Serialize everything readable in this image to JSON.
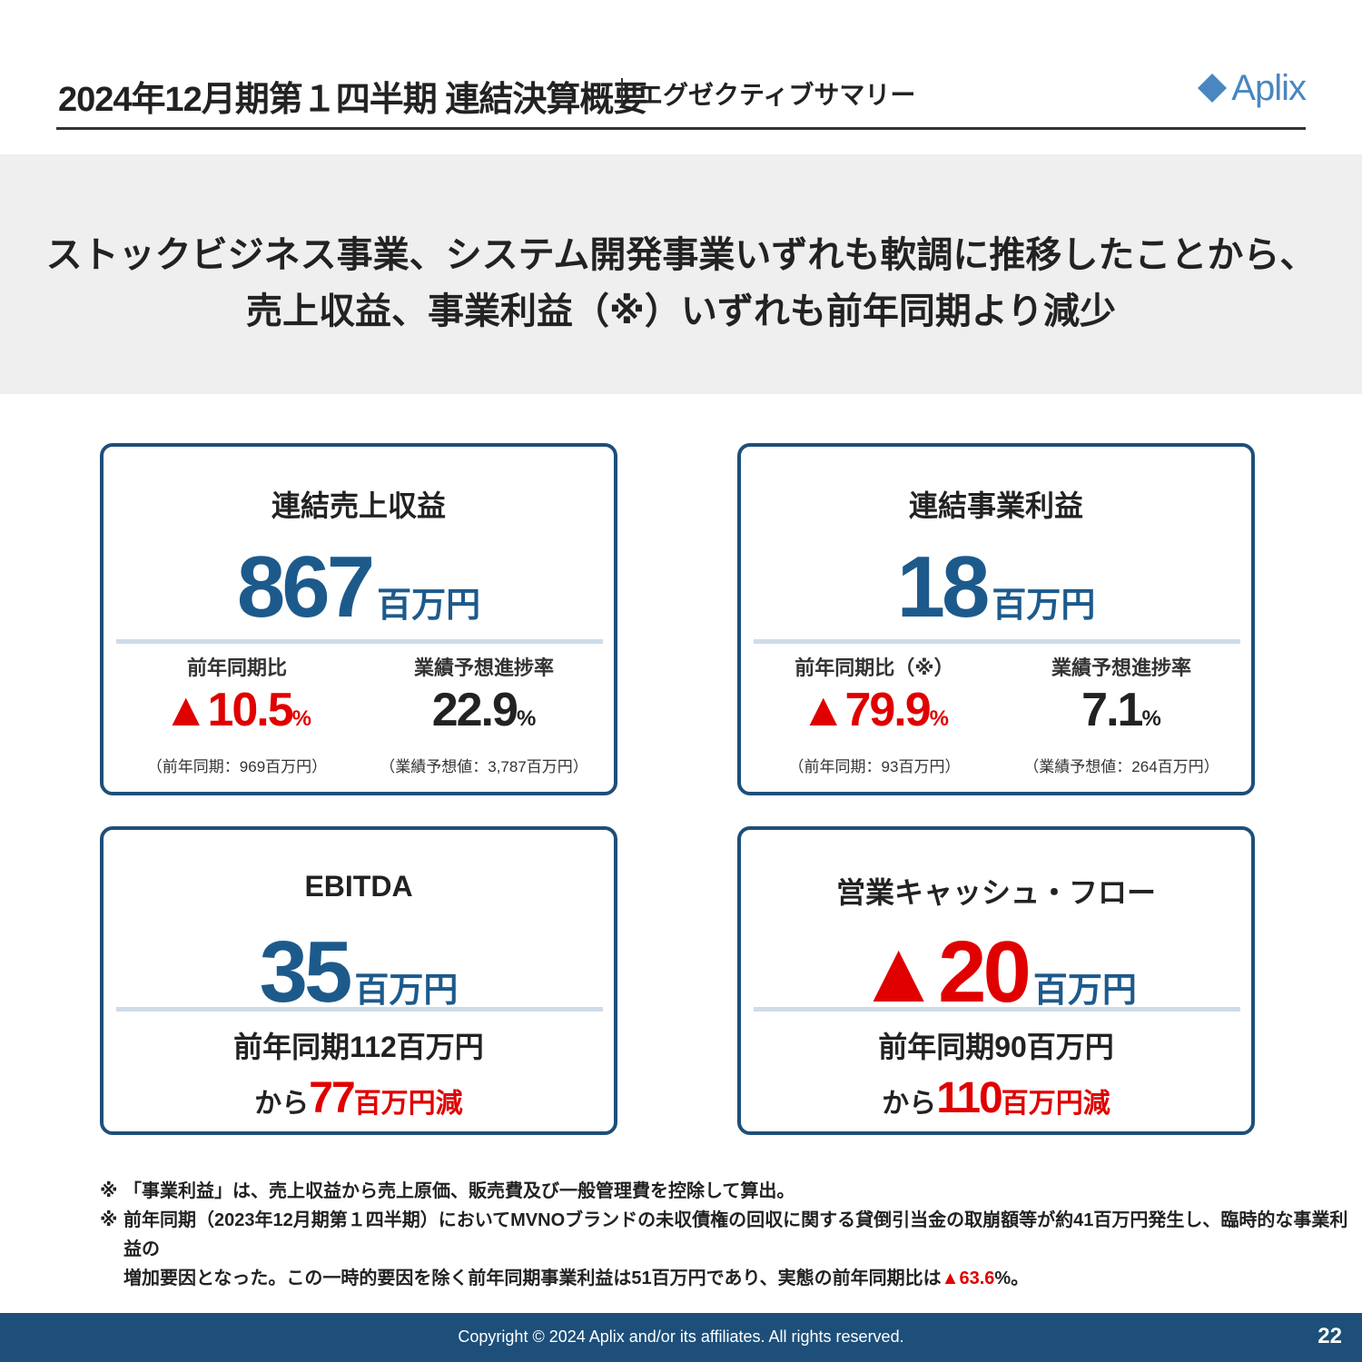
{
  "header": {
    "title": "2024年12月期第１四半期 連結決算概要",
    "subtitle": "エグゼクティブサマリー",
    "logo_text": "Aplix",
    "logo_color": "#4a86c0"
  },
  "banner": {
    "line1": "ストックビジネス事業、システム開発事業いずれも軟調に推移したことから、",
    "line2": "売上収益、事業利益（※）いずれも前年同期より減少"
  },
  "cards": {
    "revenue": {
      "title": "連結売上収益",
      "value": "867",
      "unit": "百万円",
      "left_label": "前年同期比",
      "left_value": "▲10.5",
      "left_pct": "%",
      "left_note": "（前年同期：969百万円）",
      "right_label": "業績予想進捗率",
      "right_value": "22.9",
      "right_pct": "%",
      "right_note": "（業績予想値：3,787百万円）"
    },
    "business_profit": {
      "title": "連結事業利益",
      "value": "18",
      "unit": "百万円",
      "left_label": "前年同期比（※）",
      "left_value": "▲79.9",
      "left_pct": "%",
      "left_note": "（前年同期：93百万円）",
      "right_label": "業績予想進捗率",
      "right_value": "7.1",
      "right_pct": "%",
      "right_note": "（業績予想値：264百万円）"
    },
    "ebitda": {
      "title": "EBITDA",
      "value": "35",
      "unit": "百万円",
      "prev_line": "前年同期112百万円",
      "change_prefix": "から",
      "change_value": "77",
      "change_unit": "百万円減"
    },
    "operating_cf": {
      "title": "営業キャッシュ・フロー",
      "value": "▲20",
      "unit": "百万円",
      "prev_line": "前年同期90百万円",
      "change_prefix": "から",
      "change_value": "110",
      "change_unit": "百万円減"
    }
  },
  "notes": {
    "mark": "※",
    "note1": "「事業利益」は、売上収益から売上原価、販売費及び一般管理費を控除して算出。",
    "note2_line1": "前年同期（2023年12月期第１四半期）においてMVNOブランドの未収債権の回収に関する貸倒引当金の取崩額等が約41百万円発生し、臨時的な事業利益の",
    "note2_line2_prefix": "増加要因となった。この一時的要因を除く前年同期事業利益は51百万円であり、実態の前年同期比は",
    "note2_line2_red": "▲63.6",
    "note2_line2_suffix": "%。"
  },
  "footer": {
    "copyright": "Copyright © 2024  Aplix and/or its affiliates. All rights reserved.",
    "page": "22"
  },
  "colors": {
    "navy": "#1d4f7a",
    "value_blue": "#1d5a8c",
    "negative_red": "#e00000",
    "banner_bg": "#efefef"
  }
}
